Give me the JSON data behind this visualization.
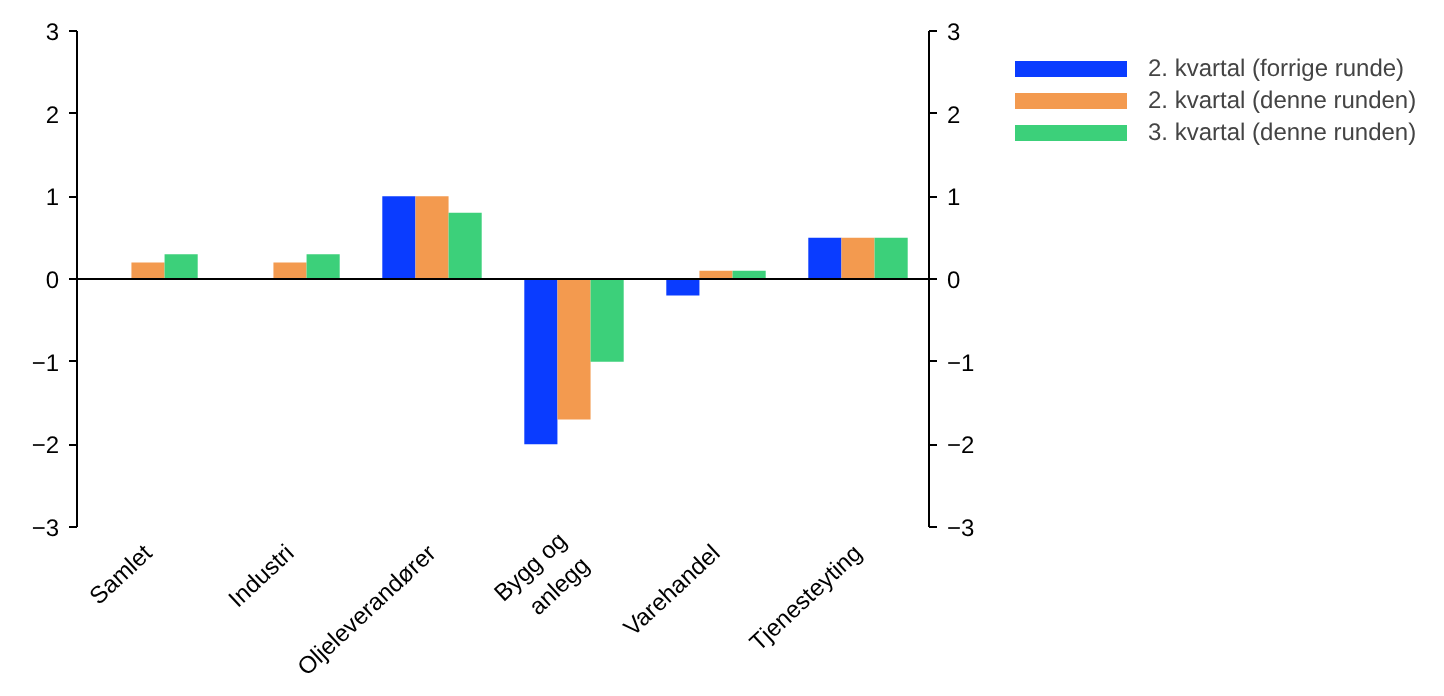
{
  "chart_data": {
    "type": "bar",
    "categories": [
      "Samlet",
      "Industri",
      "Oljeleverandører",
      "Bygg og\nanlegg",
      "Varehandel",
      "Tjenesteyting"
    ],
    "series": [
      {
        "name": "2. kvartal (forrige runde)",
        "color": "#0a3cff",
        "values": [
          0,
          0,
          1.0,
          -2.0,
          -0.2,
          0.5
        ]
      },
      {
        "name": "2. kvartal (denne runden)",
        "color": "#f39a4f",
        "values": [
          0.2,
          0.2,
          1.0,
          -1.7,
          0.1,
          0.5
        ]
      },
      {
        "name": "3. kvartal (denne runden)",
        "color": "#3cd07a",
        "values": [
          0.3,
          0.3,
          0.8,
          -1.0,
          0.1,
          0.5
        ]
      }
    ],
    "ylim": [
      -3,
      3
    ],
    "yticks": [
      -3,
      -2,
      -1,
      0,
      1,
      2,
      3
    ],
    "y2lim": [
      -3,
      3
    ],
    "y2ticks": [
      -3,
      -2,
      -1,
      0,
      1,
      2,
      3
    ],
    "ref_lines": [
      {
        "axis": "y",
        "value": 0
      }
    ],
    "grid": false,
    "legend": "right"
  }
}
